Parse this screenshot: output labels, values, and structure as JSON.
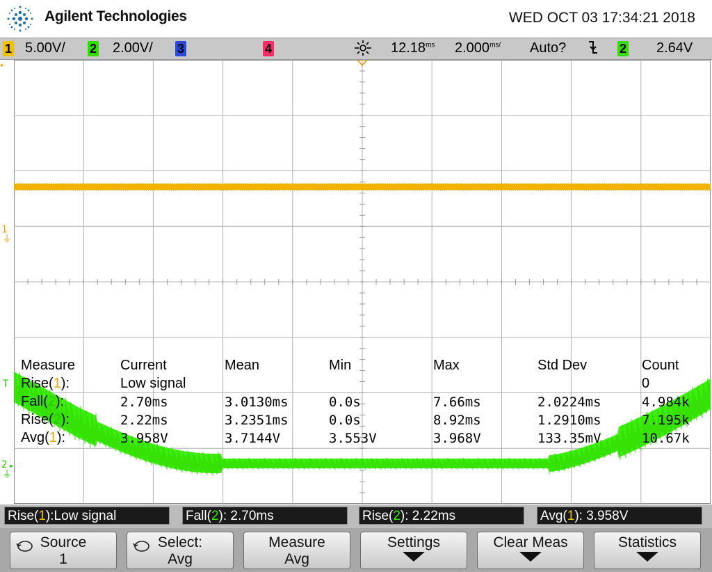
{
  "header": {
    "brand": "Agilent Technologies",
    "datetime": "WED OCT 03 17:34:21 2018",
    "logo_icon": "agilent-spark-icon"
  },
  "status": {
    "ch1_num": "1",
    "ch1_scale": "5.00V/",
    "ch2_num": "2",
    "ch2_scale": "2.00V/",
    "ch3_num": "3",
    "ch4_num": "4",
    "time_delay": "12.18",
    "time_delay_unit": "ms",
    "time_scale": "2.000",
    "time_scale_unit": "ms/",
    "trigger_mode": "Auto?",
    "trigger_slope_icon": "falling-edge-icon",
    "trigger_source": "2",
    "trigger_level": "2.64V"
  },
  "colors": {
    "ch1": "#f2b200",
    "ch2": "#33ee00",
    "ch3": "#3355ff",
    "ch4": "#ff2266"
  },
  "markers": {
    "ch1": "1",
    "ch2": "2",
    "trigger": "T"
  },
  "measurements": {
    "headers": [
      "Measure",
      "Current",
      "Mean",
      "Min",
      "Max",
      "Std Dev",
      "Count"
    ],
    "rows": [
      {
        "name": "Rise(",
        "ch": "1",
        "close": "):",
        "current": "Low signal",
        "mean": "",
        "min": "",
        "max": "",
        "std": "",
        "count": "0"
      },
      {
        "name": "Fall(",
        "ch": "2",
        "close": "):",
        "current": "2.70ms",
        "mean": "3.0130ms",
        "min": "0.0s",
        "max": "7.66ms",
        "std": "2.0224ms",
        "count": "4.984k"
      },
      {
        "name": "Rise(",
        "ch": "2",
        "close": "):",
        "current": "2.22ms",
        "mean": "3.2351ms",
        "min": "0.0s",
        "max": "8.92ms",
        "std": "1.2910ms",
        "count": "7.195k"
      },
      {
        "name": "Avg(",
        "ch": "1",
        "close": "):",
        "current": "3.958V",
        "mean": "3.7144V",
        "min": "3.553V",
        "max": "3.968V",
        "std": "133.35mV",
        "count": "10.67k"
      }
    ]
  },
  "meas_bar": [
    {
      "pre": "Rise(",
      "ch": "1",
      "post": "):Low signal"
    },
    {
      "pre": "Fall(",
      "ch": "2",
      "post": "): 2.70ms"
    },
    {
      "pre": "Rise(",
      "ch": "2",
      "post": "): 2.22ms"
    },
    {
      "pre": "Avg(",
      "ch": "1",
      "post": "): 3.958V"
    }
  ],
  "softkeys": [
    {
      "line1": "Source",
      "line2": "1",
      "icon": "rotate-knob-icon"
    },
    {
      "line1": "Select:",
      "line2": "Avg",
      "icon": "rotate-knob-icon"
    },
    {
      "line1": "Measure",
      "line2": "Avg"
    },
    {
      "line1": "Settings",
      "line2": "",
      "arrow": true
    },
    {
      "line1": "Clear Meas",
      "line2": "",
      "arrow": true
    },
    {
      "line1": "Statistics",
      "line2": "",
      "arrow": true
    }
  ]
}
